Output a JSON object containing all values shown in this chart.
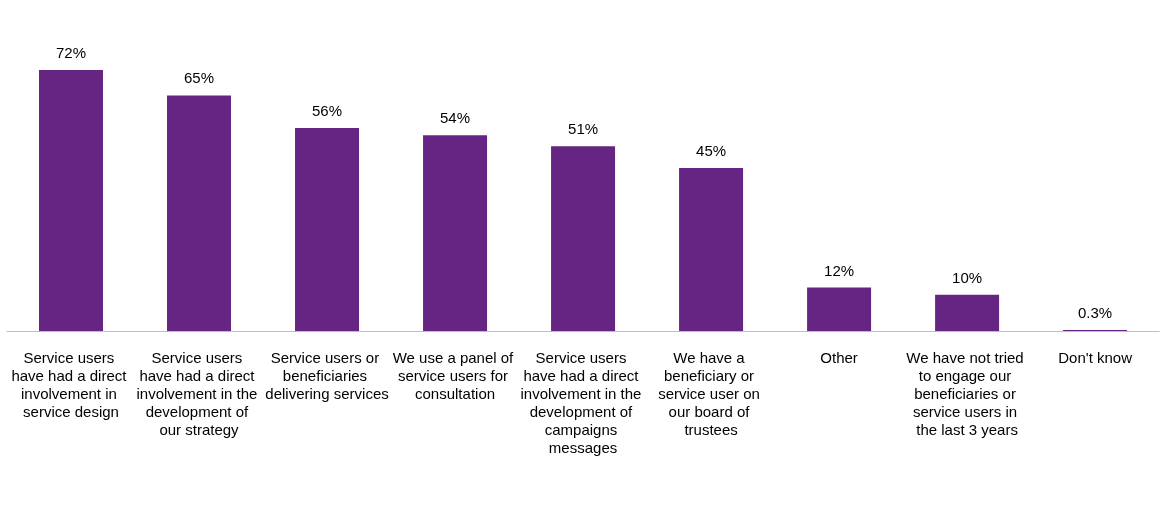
{
  "chart_data": {
    "type": "bar",
    "categories": [
      "Service users have had a direct involvement in service design",
      "Service users have had a direct involvement in the development of our strategy",
      "Service users or beneficiaries delivering services",
      "We use a panel of service users for consultation",
      "Service users have had a direct involvement in the development of campaigns messages",
      "We have a beneficiary or service user on our board of trustees",
      "Other",
      "We have not tried to engage our beneficiaries or service users in the last 3 years",
      "Don't know"
    ],
    "values": [
      72,
      65,
      56,
      54,
      51,
      45,
      12,
      10,
      0.3
    ],
    "value_labels": [
      "72%",
      "65%",
      "56%",
      "54%",
      "51%",
      "45%",
      "12%",
      "10%",
      "0.3%"
    ],
    "color": "#662483"
  }
}
